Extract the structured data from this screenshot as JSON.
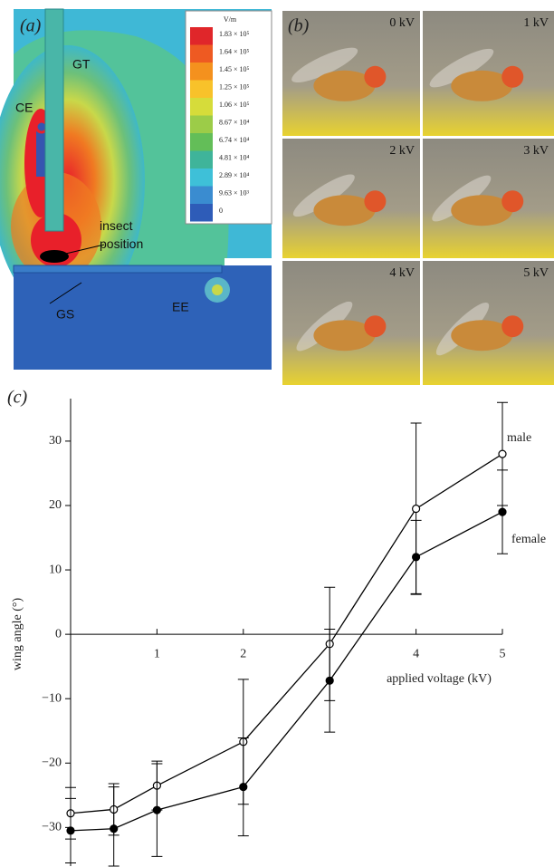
{
  "panel_a": {
    "label": "(a)",
    "colorbar_unit": "V/m",
    "colorbar_labels": [
      "1.83 × 10⁵",
      "1.64 × 10⁵",
      "1.45 × 10⁵",
      "1.25 × 10⁵",
      "1.06 × 10⁵",
      "8.67 × 10⁴",
      "6.74 × 10⁴",
      "4.81 × 10⁴",
      "2.89 × 10⁴",
      "9.63 × 10³",
      "0"
    ],
    "annotations": [
      "GT",
      "CE",
      "insect position",
      "GS",
      "EE"
    ]
  },
  "panel_b": {
    "label": "(b)",
    "photos": [
      "0 kV",
      "1 kV",
      "2 kV",
      "3 kV",
      "4 kV",
      "5 kV"
    ]
  },
  "chart_data": {
    "type": "line",
    "panel_label": "(c)",
    "x_label": "applied voltage (kV)",
    "y_label": "wing angle (°)",
    "x": [
      0,
      0.5,
      1,
      2,
      3,
      4,
      5
    ],
    "series": [
      {
        "name": "male",
        "color": "#000000",
        "marker": "open",
        "values": [
          -27.8,
          -27.2,
          -23.5,
          -16.7,
          -1.5,
          19.5,
          28
        ],
        "errors": [
          4,
          4,
          3.8,
          9.7,
          8.8,
          13.3,
          8
        ]
      },
      {
        "name": "female",
        "color": "#000000",
        "marker": "filled",
        "values": [
          -30.5,
          -30.2,
          -27.3,
          -23.7,
          -7.2,
          12,
          19
        ],
        "errors": [
          5,
          6.5,
          7.2,
          7.6,
          8,
          5.7,
          6.5
        ]
      }
    ],
    "xlim": [
      0,
      5
    ],
    "xticks": [
      1,
      2,
      4,
      5
    ],
    "ylim": [
      -36,
      36.6
    ],
    "yticks": [
      {
        "value": -30,
        "label": "−30"
      },
      {
        "value": -20,
        "label": "−20"
      },
      {
        "value": -10,
        "label": "−10"
      },
      0,
      10,
      20,
      30
    ]
  }
}
